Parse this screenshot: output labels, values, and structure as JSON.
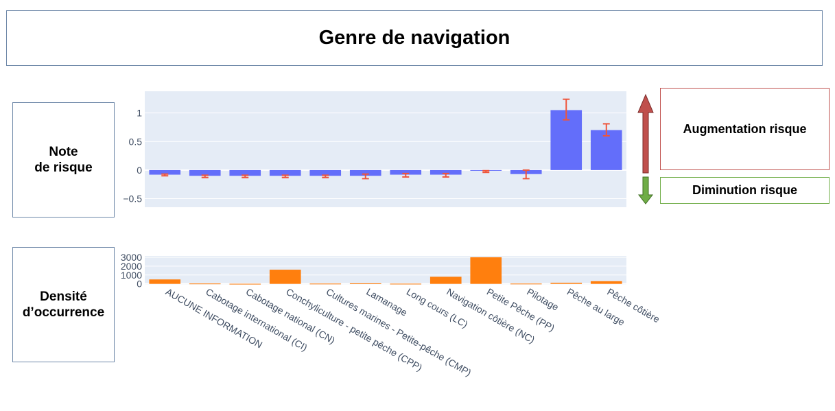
{
  "title": "Genre de navigation",
  "labels": {
    "note": "Note\nde risque",
    "density": "Densité\nd’occurrence",
    "increase": "Augmentation risque",
    "decrease": "Diminution risque"
  },
  "colors": {
    "risk_bar": "#636efa",
    "error_bar": "#ef553b",
    "density_bar": "#ff7f0e",
    "plot_bg": "#e5ecf6",
    "up_arrow": "#c0504d",
    "down_arrow": "#70ad47"
  },
  "chart_data": [
    {
      "type": "bar",
      "title": "",
      "categories": [
        "AUCUNE INFORMATION",
        "Cabotage international (CI)",
        "Cabotage national (CN)",
        "Conchyliculture - petite pêche (CPP)",
        "Cultures marines - Petite-pêche (CMP)",
        "Lamanage",
        "Long cours (LC)",
        "Navigation côtière (NC)",
        "Petite Pêche (PP)",
        "Pilotage",
        "Pêche au large",
        "Pêche côtière"
      ],
      "values": [
        -0.08,
        -0.1,
        -0.1,
        -0.1,
        -0.1,
        -0.1,
        -0.08,
        -0.08,
        -0.01,
        -0.07,
        1.05,
        0.7
      ],
      "error_low": [
        -0.1,
        -0.13,
        -0.13,
        -0.13,
        -0.13,
        -0.15,
        -0.12,
        -0.12,
        -0.04,
        -0.15,
        0.88,
        0.6
      ],
      "error_high": [
        -0.07,
        -0.09,
        -0.09,
        -0.09,
        -0.09,
        -0.07,
        -0.06,
        -0.06,
        -0.01,
        0.0,
        1.24,
        0.81
      ],
      "yticks": [
        "1",
        "0.5",
        "0",
        "−0.5"
      ],
      "ytick_values": [
        1,
        0.5,
        0,
        -0.5
      ],
      "ylim": [
        -0.65,
        1.38
      ],
      "grid": true
    },
    {
      "type": "bar",
      "title": "",
      "categories": [
        "AUCUNE INFORMATION",
        "Cabotage international (CI)",
        "Cabotage national (CN)",
        "Conchyliculture - petite pêche (CPP)",
        "Cultures marines - Petite-pêche (CMP)",
        "Lamanage",
        "Long cours (LC)",
        "Navigation côtière (NC)",
        "Petite Pêche (PP)",
        "Pilotage",
        "Pêche au large",
        "Pêche côtière"
      ],
      "values": [
        500,
        40,
        10,
        1600,
        30,
        60,
        20,
        800,
        3000,
        30,
        120,
        300
      ],
      "yticks": [
        "3000",
        "2000",
        "1000",
        "0"
      ],
      "ytick_values": [
        3000,
        2000,
        1000,
        0
      ],
      "ylim": [
        -100,
        3150
      ],
      "grid": true
    }
  ]
}
